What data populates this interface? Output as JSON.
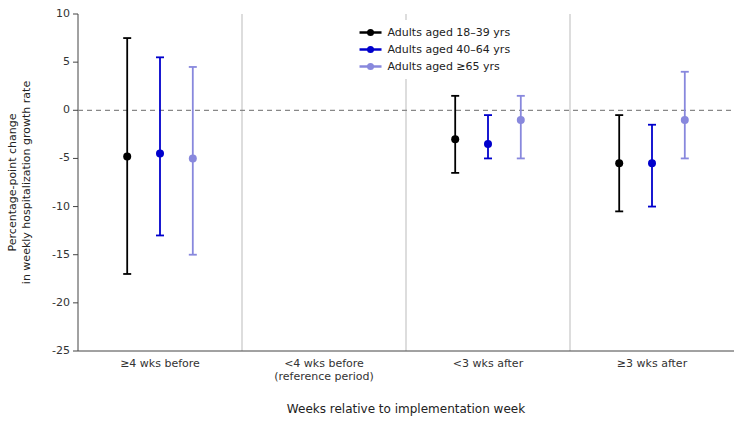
{
  "chart_data": {
    "type": "errorbar",
    "categories": [
      "≥4 wks before",
      "<4 wks before\n(reference period)",
      "<3 wks after",
      "≥3 wks after"
    ],
    "series": [
      {
        "name": "Adults aged 18–39 yrs",
        "color": "#000000",
        "values": [
          -4.8,
          null,
          -3.0,
          -5.5
        ],
        "ci_low": [
          -17.0,
          null,
          -6.5,
          -10.5
        ],
        "ci_high": [
          7.5,
          null,
          1.5,
          -0.5
        ]
      },
      {
        "name": "Adults aged 40–64 yrs",
        "color": "#0000cc",
        "values": [
          -4.5,
          null,
          -3.5,
          -5.5
        ],
        "ci_low": [
          -13.0,
          null,
          -5.0,
          -10.0
        ],
        "ci_high": [
          5.5,
          null,
          -0.5,
          -1.5
        ]
      },
      {
        "name": "Adults aged ≥65 yrs",
        "color": "#8888dd",
        "values": [
          -5.0,
          null,
          -1.0,
          -1.0
        ],
        "ci_low": [
          -15.0,
          null,
          -5.0,
          -5.0
        ],
        "ci_high": [
          4.5,
          null,
          1.5,
          4.0
        ]
      }
    ],
    "ylim": [
      -25,
      10
    ],
    "yticks": [
      10,
      5,
      0,
      -5,
      -10,
      -15,
      -20,
      -25
    ],
    "ylabel": "Percentage-point change\nin weekly hospitalization growth rate",
    "xlabel": "Weeks relative to implementation week",
    "reference_line": 0,
    "grid": false,
    "legend": "upper center",
    "marker": "circle"
  }
}
